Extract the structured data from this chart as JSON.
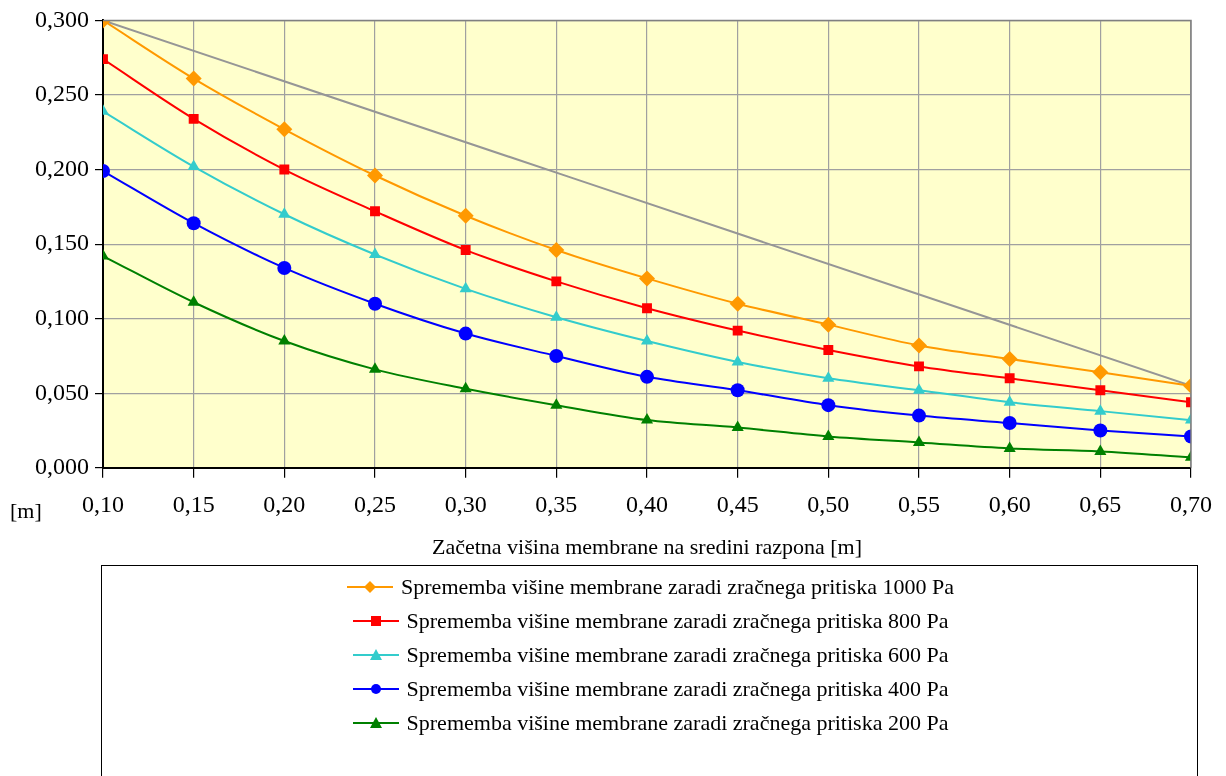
{
  "chart_data": {
    "type": "line",
    "xlabel": "Začetna višina membrane na sredini razpona [m]",
    "ylabel": "[m]",
    "x": [
      0.1,
      0.15,
      0.2,
      0.25,
      0.3,
      0.35,
      0.4,
      0.45,
      0.5,
      0.55,
      0.6,
      0.65,
      0.7
    ],
    "xlim": [
      0.1,
      0.7
    ],
    "xticks": [
      {
        "value": 0.1,
        "label": "0,10"
      },
      {
        "value": 0.15,
        "label": "0,15"
      },
      {
        "value": 0.2,
        "label": "0,20"
      },
      {
        "value": 0.25,
        "label": "0,25"
      },
      {
        "value": 0.3,
        "label": "0,30"
      },
      {
        "value": 0.35,
        "label": "0,35"
      },
      {
        "value": 0.4,
        "label": "0,40"
      },
      {
        "value": 0.45,
        "label": "0,45"
      },
      {
        "value": 0.5,
        "label": "0,50"
      },
      {
        "value": 0.55,
        "label": "0,55"
      },
      {
        "value": 0.6,
        "label": "0,60"
      },
      {
        "value": 0.65,
        "label": "0,65"
      },
      {
        "value": 0.7,
        "label": "0,70"
      }
    ],
    "ylim": [
      0,
      0.3
    ],
    "yticks": [
      {
        "value": 0,
        "label": "0,000"
      },
      {
        "value": 0.05,
        "label": "0,050"
      },
      {
        "value": 0.1,
        "label": "0,100"
      },
      {
        "value": 0.15,
        "label": "0,150"
      },
      {
        "value": 0.2,
        "label": "0,200"
      },
      {
        "value": 0.25,
        "label": "0,250"
      },
      {
        "value": 0.3,
        "label": "0,300"
      }
    ],
    "grid": true,
    "legend": "bottom",
    "series": [
      {
        "name": "Sprememba višine membrane zaradi zračnega pritiska 1000 Pa",
        "color": "#ff9900",
        "marker": "diamond",
        "values": [
          0.3,
          0.261,
          0.227,
          0.196,
          0.169,
          0.146,
          0.127,
          0.11,
          0.096,
          0.082,
          0.073,
          0.064,
          0.055
        ]
      },
      {
        "name": "Sprememba višine membrane zaradi zračnega pritiska 800 Pa",
        "color": "#ff0000",
        "marker": "square",
        "values": [
          0.274,
          0.234,
          0.2,
          0.172,
          0.146,
          0.125,
          0.107,
          0.092,
          0.079,
          0.068,
          0.06,
          0.052,
          0.044
        ]
      },
      {
        "name": "Sprememba višine membrane zaradi zračnega pritiska 600 Pa",
        "color": "#33cccc",
        "marker": "triangle",
        "values": [
          0.239,
          0.202,
          0.17,
          0.143,
          0.12,
          0.101,
          0.085,
          0.071,
          0.06,
          0.052,
          0.044,
          0.038,
          0.032
        ]
      },
      {
        "name": "Sprememba višine membrane zaradi zračnega pritiska 400 Pa",
        "color": "#0000ff",
        "marker": "circle",
        "values": [
          0.199,
          0.164,
          0.134,
          0.11,
          0.09,
          0.075,
          0.061,
          0.052,
          0.042,
          0.035,
          0.03,
          0.025,
          0.021
        ]
      },
      {
        "name": "Sprememba višine membrane zaradi zračnega pritiska 200 Pa",
        "color": "#008000",
        "marker": "triangle",
        "values": [
          0.142,
          0.111,
          0.085,
          0.066,
          0.053,
          0.042,
          0.032,
          0.027,
          0.021,
          0.017,
          0.013,
          0.011,
          0.007
        ]
      },
      {
        "color": "#969696",
        "marker": "none",
        "x": [
          0.1,
          0.7
        ],
        "values": [
          0.3,
          0.055
        ]
      }
    ]
  }
}
